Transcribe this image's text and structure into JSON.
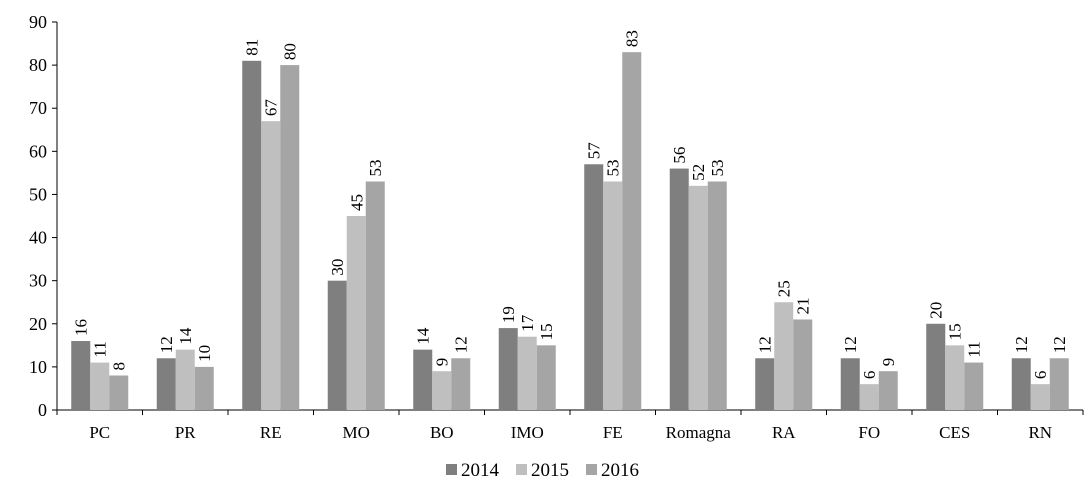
{
  "chart_data": {
    "type": "bar",
    "title": "",
    "xlabel": "",
    "ylabel": "",
    "ylim": [
      0,
      90
    ],
    "yticks": [
      0,
      10,
      20,
      30,
      40,
      50,
      60,
      70,
      80,
      90
    ],
    "grid": false,
    "legend_position": "bottom",
    "categories": [
      "PC",
      "PR",
      "RE",
      "MO",
      "BO",
      "IMO",
      "FE",
      "Romagna",
      "RA",
      "FO",
      "CES",
      "RN"
    ],
    "series": [
      {
        "name": "2014",
        "color": "#7f7f7f",
        "values": [
          16,
          12,
          81,
          30,
          14,
          19,
          57,
          56,
          12,
          12,
          20,
          12
        ]
      },
      {
        "name": "2015",
        "color": "#bfbfbf",
        "values": [
          11,
          14,
          67,
          45,
          9,
          17,
          53,
          52,
          25,
          6,
          15,
          6
        ]
      },
      {
        "name": "2016",
        "color": "#a5a5a5",
        "values": [
          8,
          10,
          80,
          53,
          12,
          15,
          83,
          53,
          21,
          9,
          11,
          12
        ]
      }
    ]
  }
}
